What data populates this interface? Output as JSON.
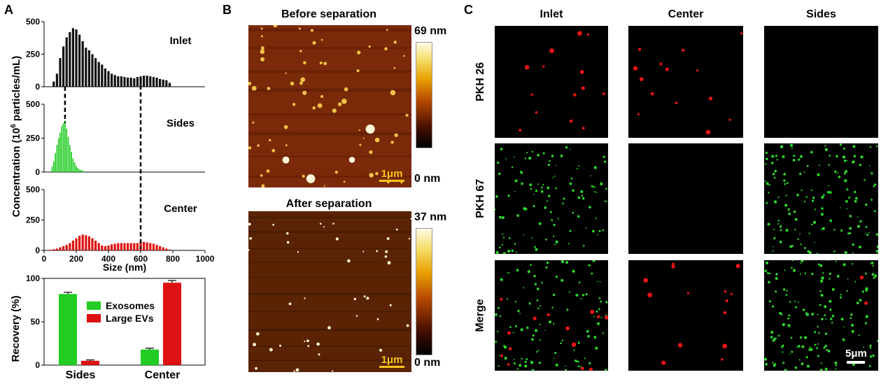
{
  "panels": {
    "A": "A",
    "B": "B",
    "C": "C"
  },
  "colors": {
    "black": "#111111",
    "green": "#22cc22",
    "red": "#dd1111"
  },
  "panelA": {
    "ylabel_pre": "Concentration (10",
    "ylabel_sup": "6",
    "ylabel_post": " particles/mL)",
    "xlabel": "Size (nm)",
    "chart_data": [
      {
        "type": "bar",
        "title": "Inlet",
        "xlabel": "Size (nm)",
        "ylabel": "Concentration (10^6 particles/mL)",
        "xlim": [
          0,
          1000
        ],
        "ylim": [
          0,
          500
        ],
        "yticks": [
          "0",
          "250",
          "500"
        ],
        "color": "#111111",
        "x": [
          60,
          80,
          100,
          120,
          140,
          160,
          180,
          200,
          220,
          240,
          260,
          280,
          300,
          320,
          340,
          360,
          380,
          400,
          420,
          440,
          460,
          480,
          500,
          520,
          540,
          560,
          580,
          600,
          620,
          640,
          660,
          680,
          700,
          720,
          740,
          760,
          780
        ],
        "values": [
          40,
          100,
          220,
          310,
          380,
          420,
          450,
          440,
          400,
          350,
          300,
          280,
          250,
          220,
          190,
          170,
          140,
          120,
          100,
          90,
          80,
          80,
          75,
          70,
          70,
          65,
          75,
          80,
          85,
          85,
          80,
          75,
          70,
          60,
          55,
          50,
          30
        ]
      },
      {
        "type": "bar",
        "title": "Sides",
        "xlabel": "Size (nm)",
        "ylabel": "Concentration (10^6 particles/mL)",
        "xlim": [
          0,
          1000
        ],
        "ylim": [
          0,
          500
        ],
        "yticks": [
          "0",
          "250",
          "500"
        ],
        "color": "#22cc22",
        "x": [
          50,
          60,
          70,
          80,
          90,
          100,
          110,
          120,
          130,
          140,
          150,
          160,
          170,
          180,
          190,
          200,
          210,
          220,
          230,
          240,
          250
        ],
        "values": [
          40,
          80,
          140,
          200,
          250,
          290,
          340,
          360,
          380,
          320,
          260,
          200,
          150,
          100,
          70,
          45,
          30,
          20,
          15,
          10,
          5
        ]
      },
      {
        "type": "bar",
        "title": "Center",
        "xlabel": "Size (nm)",
        "ylabel": "Concentration (10^6 particles/mL)",
        "xlim": [
          0,
          1000
        ],
        "ylim": [
          0,
          500
        ],
        "yticks": [
          "0",
          "250",
          "500"
        ],
        "xticks": [
          "0",
          "200",
          "400",
          "600",
          "800",
          "1000"
        ],
        "color": "#dd1111",
        "x": [
          40,
          60,
          80,
          100,
          120,
          140,
          160,
          180,
          200,
          220,
          240,
          260,
          280,
          300,
          320,
          340,
          360,
          380,
          400,
          420,
          440,
          460,
          480,
          500,
          520,
          540,
          560,
          580,
          600,
          620,
          640,
          660,
          680,
          700,
          720,
          740,
          760,
          780
        ],
        "values": [
          5,
          10,
          15,
          25,
          35,
          45,
          60,
          80,
          100,
          120,
          130,
          125,
          115,
          100,
          80,
          60,
          40,
          35,
          40,
          50,
          55,
          60,
          60,
          60,
          60,
          60,
          60,
          60,
          70,
          70,
          65,
          60,
          55,
          45,
          35,
          25,
          15,
          8
        ]
      },
      {
        "type": "bar",
        "xlabel": "",
        "ylabel": "Recovery (%)",
        "ylim": [
          0,
          100
        ],
        "yticks": [
          "0",
          "50",
          "100"
        ],
        "categories": [
          "Sides",
          "Center"
        ],
        "series": [
          {
            "name": "Exosomes",
            "color": "#22cc22",
            "values": [
              82,
              18
            ],
            "errors": [
              2,
              1.5
            ]
          },
          {
            "name": "Large EVs",
            "color": "#dd1111",
            "values": [
              5,
              95
            ],
            "errors": [
              1,
              2.5
            ]
          }
        ],
        "legend": "top-center"
      }
    ],
    "dashed_lines_nm": [
      130,
      600
    ]
  },
  "panelB": {
    "images": [
      {
        "title": "Before separation",
        "scale_max": "69 nm",
        "scale_min": "0 nm",
        "scalebar": "1μm"
      },
      {
        "title": "After separation",
        "scale_max": "37 nm",
        "scale_min": "0 nm",
        "scalebar": "1μm"
      }
    ]
  },
  "panelC": {
    "columns": [
      "Inlet",
      "Center",
      "Sides"
    ],
    "rows": [
      "PKH 26",
      "PKH 67",
      "Merge"
    ],
    "scalebar": "5μm"
  }
}
